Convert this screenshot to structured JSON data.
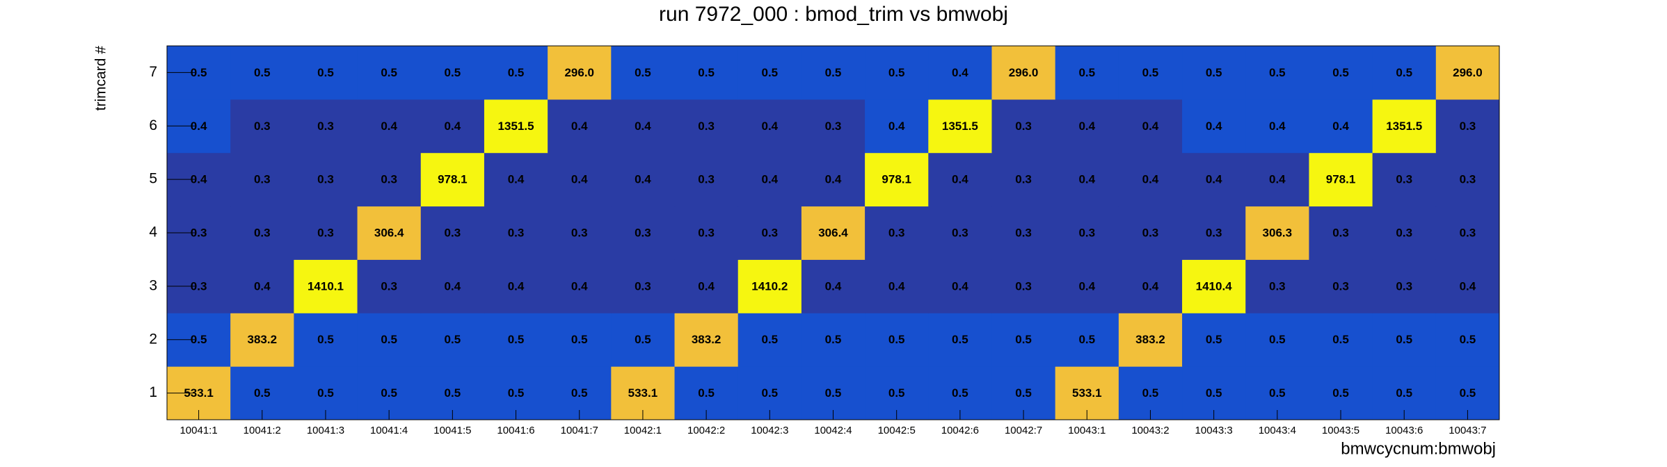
{
  "chart_data": {
    "type": "heatmap",
    "title": "run 7972_000 : bmod_trim vs bmwobj",
    "xlabel": "bmwcycnum:bmwobj",
    "ylabel": "trimcard #",
    "categories": [
      "10041:1",
      "10041:2",
      "10041:3",
      "10041:4",
      "10041:5",
      "10041:6",
      "10041:7",
      "10042:1",
      "10042:2",
      "10042:3",
      "10042:4",
      "10042:5",
      "10042:6",
      "10042:7",
      "10043:1",
      "10043:2",
      "10043:3",
      "10043:4",
      "10043:5",
      "10043:6",
      "10043:7"
    ],
    "y_categories": [
      "1",
      "2",
      "3",
      "4",
      "5",
      "6",
      "7"
    ],
    "z": [
      [
        533.1,
        0.5,
        0.5,
        0.5,
        0.5,
        0.5,
        0.5,
        533.1,
        0.5,
        0.5,
        0.5,
        0.5,
        0.5,
        0.5,
        533.1,
        0.5,
        0.5,
        0.5,
        0.5,
        0.5,
        0.5
      ],
      [
        0.5,
        383.2,
        0.5,
        0.5,
        0.5,
        0.5,
        0.5,
        0.5,
        383.2,
        0.5,
        0.5,
        0.5,
        0.5,
        0.5,
        0.5,
        383.2,
        0.5,
        0.5,
        0.5,
        0.5,
        0.5
      ],
      [
        0.3,
        0.4,
        1410.1,
        0.3,
        0.4,
        0.4,
        0.4,
        0.3,
        0.4,
        1410.2,
        0.4,
        0.4,
        0.4,
        0.3,
        0.4,
        0.4,
        1410.4,
        0.3,
        0.3,
        0.3,
        0.4
      ],
      [
        0.3,
        0.3,
        0.3,
        306.4,
        0.3,
        0.3,
        0.3,
        0.3,
        0.3,
        0.3,
        306.4,
        0.3,
        0.3,
        0.3,
        0.3,
        0.3,
        0.3,
        306.3,
        0.3,
        0.3,
        0.3
      ],
      [
        0.4,
        0.3,
        0.3,
        0.3,
        978.1,
        0.4,
        0.4,
        0.4,
        0.3,
        0.4,
        0.4,
        978.1,
        0.4,
        0.3,
        0.4,
        0.4,
        0.4,
        0.4,
        978.1,
        0.3,
        0.3
      ],
      [
        0.4,
        0.3,
        0.3,
        0.4,
        0.4,
        1351.5,
        0.4,
        0.4,
        0.3,
        0.4,
        0.3,
        0.4,
        1351.5,
        0.3,
        0.4,
        0.4,
        0.4,
        0.4,
        0.4,
        1351.5,
        0.3
      ],
      [
        0.5,
        0.5,
        0.5,
        0.5,
        0.5,
        0.5,
        296.0,
        0.5,
        0.5,
        0.5,
        0.5,
        0.5,
        0.4,
        296.0,
        0.5,
        0.5,
        0.5,
        0.5,
        0.5,
        0.5,
        296.0
      ]
    ],
    "value_labels": [
      [
        "533.1",
        "0.5",
        "0.5",
        "0.5",
        "0.5",
        "0.5",
        "0.5",
        "533.1",
        "0.5",
        "0.5",
        "0.5",
        "0.5",
        "0.5",
        "0.5",
        "533.1",
        "0.5",
        "0.5",
        "0.5",
        "0.5",
        "0.5",
        "0.5"
      ],
      [
        "0.5",
        "383.2",
        "0.5",
        "0.5",
        "0.5",
        "0.5",
        "0.5",
        "0.5",
        "383.2",
        "0.5",
        "0.5",
        "0.5",
        "0.5",
        "0.5",
        "0.5",
        "383.2",
        "0.5",
        "0.5",
        "0.5",
        "0.5",
        "0.5"
      ],
      [
        "0.3",
        "0.4",
        "1410.1",
        "0.3",
        "0.4",
        "0.4",
        "0.4",
        "0.3",
        "0.4",
        "1410.2",
        "0.4",
        "0.4",
        "0.4",
        "0.3",
        "0.4",
        "0.4",
        "1410.4",
        "0.3",
        "0.3",
        "0.3",
        "0.4"
      ],
      [
        "0.3",
        "0.3",
        "0.3",
        "306.4",
        "0.3",
        "0.3",
        "0.3",
        "0.3",
        "0.3",
        "0.3",
        "306.4",
        "0.3",
        "0.3",
        "0.3",
        "0.3",
        "0.3",
        "0.3",
        "306.3",
        "0.3",
        "0.3",
        "0.3"
      ],
      [
        "0.4",
        "0.3",
        "0.3",
        "0.3",
        "978.1",
        "0.4",
        "0.4",
        "0.4",
        "0.3",
        "0.4",
        "0.4",
        "978.1",
        "0.4",
        "0.3",
        "0.4",
        "0.4",
        "0.4",
        "0.4",
        "978.1",
        "0.3",
        "0.3"
      ],
      [
        "0.4",
        "0.3",
        "0.3",
        "0.4",
        "0.4",
        "1351.5",
        "0.4",
        "0.4",
        "0.3",
        "0.4",
        "0.3",
        "0.4",
        "1351.5",
        "0.3",
        "0.4",
        "0.4",
        "0.4",
        "0.4",
        "0.4",
        "1351.5",
        "0.3"
      ],
      [
        "0.5",
        "0.5",
        "0.5",
        "0.5",
        "0.5",
        "0.5",
        "296.0",
        "0.5",
        "0.5",
        "0.5",
        "0.5",
        "0.5",
        "0.4",
        "296.0",
        "0.5",
        "0.5",
        "0.5",
        "0.5",
        "0.5",
        "0.5",
        "296.0"
      ]
    ],
    "colors": [
      [
        "#f2c03a",
        "#1750cf",
        "#1750cf",
        "#1750cf",
        "#1750cf",
        "#1750cf",
        "#1750cf",
        "#f2c03a",
        "#1750cf",
        "#1750cf",
        "#1750cf",
        "#1750cf",
        "#1750cf",
        "#1750cf",
        "#f2c03a",
        "#1750cf",
        "#1750cf",
        "#1750cf",
        "#1750cf",
        "#1750cf",
        "#1750cf"
      ],
      [
        "#1750cf",
        "#f2c03a",
        "#1750cf",
        "#1750cf",
        "#1750cf",
        "#1750cf",
        "#1750cf",
        "#1750cf",
        "#f2c03a",
        "#1750cf",
        "#1750cf",
        "#1750cf",
        "#1750cf",
        "#1750cf",
        "#1750cf",
        "#f2c03a",
        "#1750cf",
        "#1750cf",
        "#1750cf",
        "#1750cf",
        "#1750cf"
      ],
      [
        "#2a3ca4",
        "#2a3ca4",
        "#f6f610",
        "#2a3ca4",
        "#2a3ca4",
        "#2a3ca4",
        "#2a3ca4",
        "#2a3ca4",
        "#2a3ca4",
        "#f6f610",
        "#2a3ca4",
        "#2a3ca4",
        "#2a3ca4",
        "#2a3ca4",
        "#2a3ca4",
        "#2a3ca4",
        "#f6f610",
        "#2a3ca4",
        "#2a3ca4",
        "#2a3ca4",
        "#2a3ca4"
      ],
      [
        "#2a3ca4",
        "#2a3ca4",
        "#2a3ca4",
        "#f2c03a",
        "#2a3ca4",
        "#2a3ca4",
        "#2a3ca4",
        "#2a3ca4",
        "#2a3ca4",
        "#2a3ca4",
        "#f2c03a",
        "#2a3ca4",
        "#2a3ca4",
        "#2a3ca4",
        "#2a3ca4",
        "#2a3ca4",
        "#2a3ca4",
        "#f2c03a",
        "#2a3ca4",
        "#2a3ca4",
        "#2a3ca4"
      ],
      [
        "#2a3ca4",
        "#2a3ca4",
        "#2a3ca4",
        "#2a3ca4",
        "#f6f610",
        "#2a3ca4",
        "#2a3ca4",
        "#2a3ca4",
        "#2a3ca4",
        "#2a3ca4",
        "#2a3ca4",
        "#f6f610",
        "#2a3ca4",
        "#2a3ca4",
        "#2a3ca4",
        "#2a3ca4",
        "#2a3ca4",
        "#2a3ca4",
        "#f6f610",
        "#2a3ca4",
        "#2a3ca4"
      ],
      [
        "#1750cf",
        "#2a3ca4",
        "#2a3ca4",
        "#2a3ca4",
        "#2a3ca4",
        "#f6f610",
        "#2a3ca4",
        "#2a3ca4",
        "#2a3ca4",
        "#2a3ca4",
        "#2a3ca4",
        "#1750cf",
        "#f6f610",
        "#2a3ca4",
        "#2a3ca4",
        "#2a3ca4",
        "#1750cf",
        "#1750cf",
        "#1750cf",
        "#f6f610",
        "#2a3ca4"
      ],
      [
        "#1750cf",
        "#1750cf",
        "#1750cf",
        "#1750cf",
        "#1750cf",
        "#1750cf",
        "#f2c03a",
        "#1750cf",
        "#1750cf",
        "#1750cf",
        "#1750cf",
        "#1750cf",
        "#1750cf",
        "#f2c03a",
        "#1750cf",
        "#1750cf",
        "#1750cf",
        "#1750cf",
        "#1750cf",
        "#1750cf",
        "#f2c03a"
      ]
    ]
  }
}
